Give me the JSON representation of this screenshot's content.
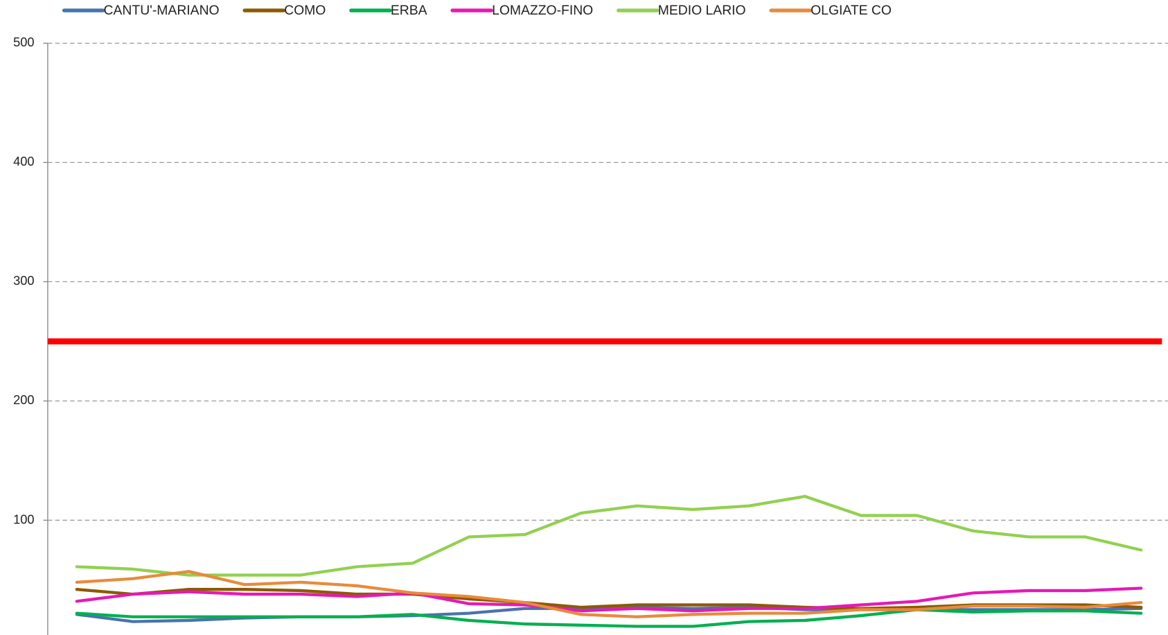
{
  "chart_data": {
    "type": "line",
    "categories": [
      null,
      null,
      null,
      null,
      null,
      null,
      null,
      null,
      null,
      null,
      null,
      null,
      null,
      null,
      null,
      null,
      null,
      null,
      null,
      null
    ],
    "ylim": [
      0,
      500
    ],
    "yticks": [
      100,
      200,
      300,
      400,
      500
    ],
    "grid": true,
    "legend": "top",
    "threshold": {
      "value": 250,
      "color": "#ff0000"
    },
    "series": [
      {
        "name": "CANTU'-MARIANO",
        "color": "#4a72b0",
        "values": [
          21,
          15,
          16,
          18,
          19,
          19,
          20,
          22,
          26,
          26,
          27,
          26,
          27,
          25,
          25,
          25,
          25,
          25,
          25,
          26
        ]
      },
      {
        "name": "COMO",
        "color": "#8c5a00",
        "values": [
          42,
          38,
          42,
          42,
          41,
          38,
          38,
          34,
          31,
          27,
          29,
          29,
          29,
          27,
          26,
          27,
          29,
          29,
          29,
          27
        ]
      },
      {
        "name": "ERBA",
        "color": "#00b050",
        "values": [
          22,
          19,
          19,
          19,
          19,
          19,
          21,
          16,
          13,
          12,
          11,
          11,
          15,
          16,
          20,
          25,
          23,
          24,
          24,
          22
        ]
      },
      {
        "name": "LOMAZZO-FINO",
        "color": "#e619b4",
        "values": [
          32,
          38,
          40,
          38,
          38,
          36,
          39,
          30,
          29,
          24,
          26,
          24,
          26,
          26,
          29,
          32,
          39,
          41,
          41,
          43
        ]
      },
      {
        "name": "MEDIO LARIO",
        "color": "#92d050",
        "values": [
          61,
          59,
          54,
          54,
          54,
          61,
          64,
          86,
          88,
          106,
          112,
          109,
          112,
          120,
          104,
          104,
          91,
          86,
          86,
          75
        ]
      },
      {
        "name": "OLGIATE CO",
        "color": "#e88a3c",
        "values": [
          48,
          51,
          57,
          46,
          48,
          45,
          39,
          36,
          31,
          21,
          19,
          21,
          22,
          22,
          25,
          25,
          28,
          28,
          27,
          31
        ]
      }
    ]
  }
}
